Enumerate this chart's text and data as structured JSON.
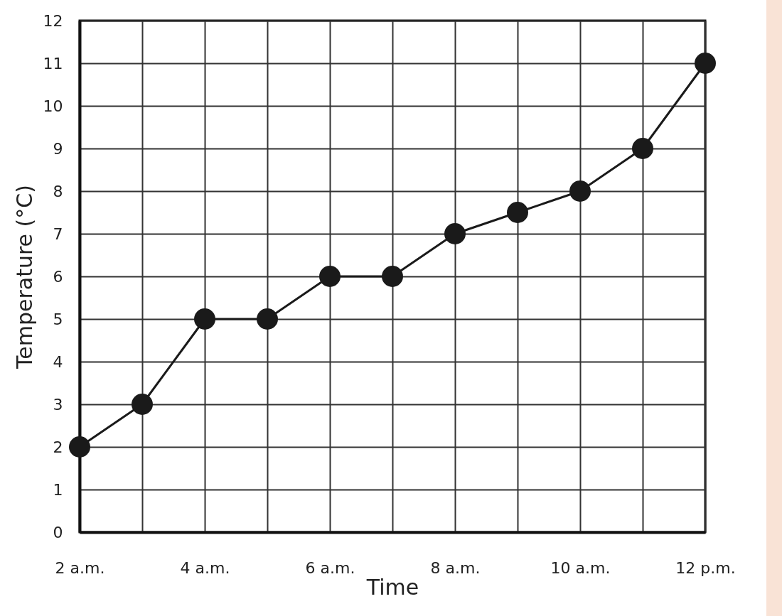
{
  "chart_data": {
    "type": "line",
    "xlabel": "Time",
    "ylabel": "Temperature (°C)",
    "x": [
      2,
      3,
      4,
      5,
      6,
      7,
      8,
      9,
      10,
      11,
      12
    ],
    "series": [
      {
        "color": "#1a1a1a",
        "values": [
          2,
          3,
          5,
          5,
          6,
          6,
          7,
          7.5,
          8,
          9,
          11
        ]
      }
    ],
    "xlim": [
      2,
      12
    ],
    "xticks": [
      {
        "value": 2,
        "label": "2 a.m."
      },
      {
        "value": 3,
        "label": null
      },
      {
        "value": 4,
        "label": "4 a.m."
      },
      {
        "value": 5,
        "label": null
      },
      {
        "value": 6,
        "label": "6 a.m."
      },
      {
        "value": 7,
        "label": null
      },
      {
        "value": 8,
        "label": "8 a.m."
      },
      {
        "value": 9,
        "label": null
      },
      {
        "value": 10,
        "label": "10 a.m."
      },
      {
        "value": 11,
        "label": null
      },
      {
        "value": 12,
        "label": "12 p.m."
      }
    ],
    "ylim": [
      0,
      12
    ],
    "yticks": [
      0,
      1,
      2,
      3,
      4,
      5,
      6,
      7,
      8,
      9,
      10,
      11,
      12
    ],
    "grid": true,
    "marker": "circle",
    "line_style": "solid",
    "legend": false
  }
}
